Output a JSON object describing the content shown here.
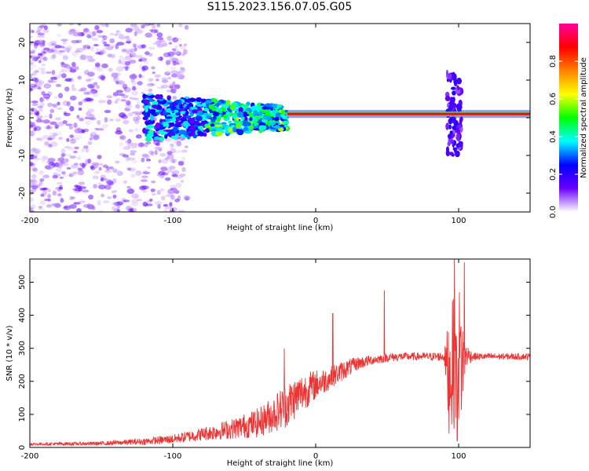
{
  "title": "S115.2023.156.07.05.G05",
  "chart_data": [
    {
      "type": "heatmap",
      "xlabel": "Height of straight line (km)",
      "ylabel": "Frequency (Hz)",
      "xlim": [
        -200,
        150
      ],
      "ylim": [
        -25,
        25
      ],
      "xticks": [
        -200,
        -100,
        0,
        100
      ],
      "yticks": [
        -20,
        -10,
        0,
        10,
        20
      ],
      "colorbar": {
        "label": "Normalized spectral amplitude",
        "range": [
          0.0,
          1.0
        ],
        "ticks": [
          0.0,
          0.2,
          0.4,
          0.6,
          0.8
        ],
        "tick_labels": [
          "0.0",
          "0.2",
          "0.4",
          "0.6",
          "0.8"
        ],
        "colormap": [
          "#ffffff",
          "#6a00ff",
          "#0000ff",
          "#00ffff",
          "#00ff00",
          "#ffff00",
          "#ff8000",
          "#ff0000",
          "#ff00a0"
        ]
      },
      "features": [
        {
          "description": "scattered noise",
          "x_range": [
            -200,
            -120
          ],
          "freq_range": [
            -25,
            25
          ],
          "amplitude": 0.1
        },
        {
          "description": "broad band",
          "x_range": [
            -120,
            -20
          ],
          "freq_range": [
            -6,
            6
          ],
          "amplitude": 0.35
        },
        {
          "description": "narrow carrier line",
          "x_range": [
            -20,
            150
          ],
          "freq": 1,
          "amplitude": 0.9
        },
        {
          "description": "burst",
          "x_range": [
            92,
            102
          ],
          "freq_range": [
            -10,
            12
          ],
          "amplitude": 0.5
        }
      ]
    },
    {
      "type": "line",
      "xlabel": "Height of straight line (km)",
      "ylabel": "SNR (10 * v/v)",
      "xlim": [
        -200,
        150
      ],
      "ylim": [
        0,
        570
      ],
      "xticks": [
        -200,
        -100,
        0,
        100
      ],
      "yticks": [
        0,
        100,
        200,
        300,
        400,
        500
      ],
      "color": "#ee3333",
      "series_envelope": {
        "x": [
          -200,
          -150,
          -120,
          -100,
          -80,
          -60,
          -40,
          -30,
          -20,
          -10,
          0,
          10,
          20,
          30,
          40,
          50,
          60,
          70,
          80,
          90,
          93,
          96,
          99,
          102,
          105,
          110,
          120,
          130,
          140,
          150
        ],
        "mean": [
          10,
          12,
          18,
          25,
          40,
          55,
          75,
          100,
          130,
          165,
          190,
          210,
          235,
          255,
          265,
          272,
          275,
          275,
          275,
          275,
          220,
          250,
          300,
          260,
          280,
          275,
          275,
          275,
          275,
          275
        ],
        "noise": [
          4,
          6,
          10,
          14,
          20,
          30,
          45,
          55,
          70,
          60,
          45,
          35,
          30,
          20,
          15,
          14,
          12,
          12,
          12,
          15,
          180,
          200,
          230,
          190,
          40,
          12,
          10,
          10,
          10,
          10
        ]
      },
      "spikes": [
        {
          "x": -22,
          "y": 300
        },
        {
          "x": 12,
          "y": 405
        },
        {
          "x": 48,
          "y": 475
        },
        {
          "x": 97,
          "y": 575
        },
        {
          "x": 99,
          "y": 20
        },
        {
          "x": 104,
          "y": 560
        }
      ]
    }
  ]
}
